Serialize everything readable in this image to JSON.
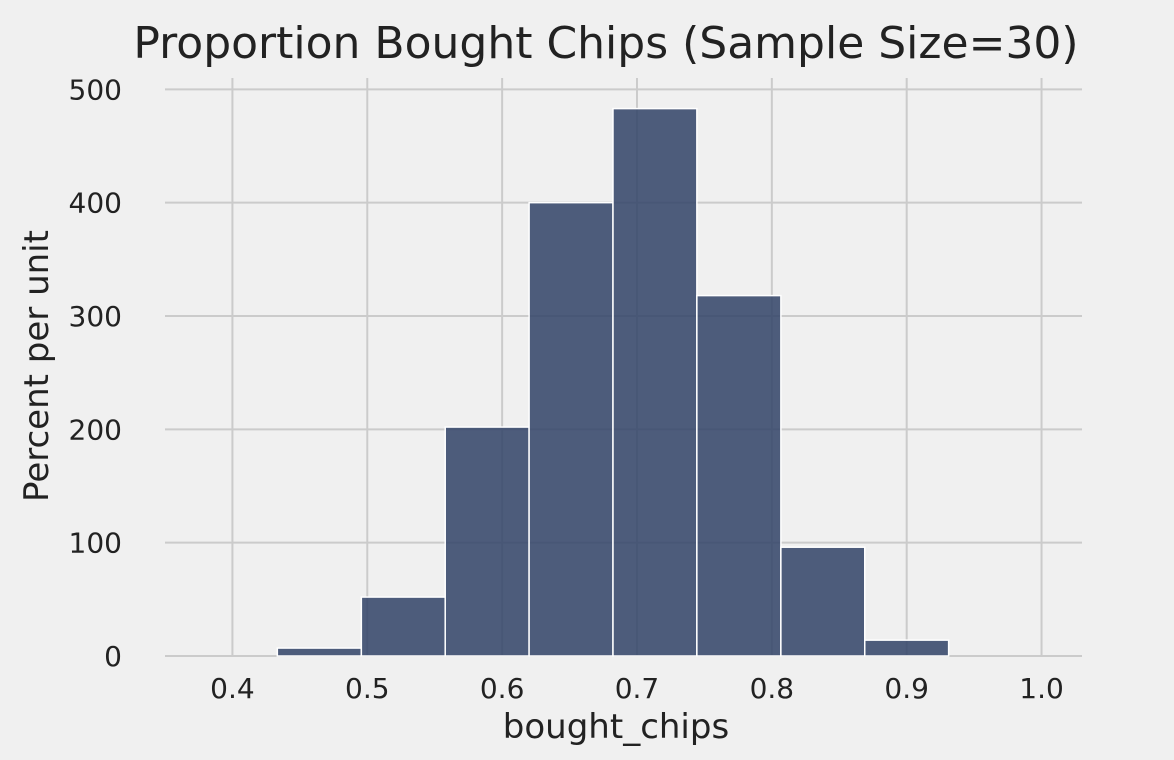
{
  "chart_data": {
    "type": "bar",
    "title": "Proportion Bought Chips (Sample Size=30)",
    "xlabel": "bought_chips",
    "ylabel": "Percent per unit",
    "xlim": [
      0.35,
      1.03
    ],
    "ylim": [
      0,
      510
    ],
    "x_ticks": [
      0.4,
      0.5,
      0.6,
      0.7,
      0.8,
      0.9,
      1.0
    ],
    "x_tick_labels": [
      "0.4",
      "0.5",
      "0.6",
      "0.7",
      "0.8",
      "0.9",
      "1.0"
    ],
    "y_ticks": [
      0,
      100,
      200,
      300,
      400,
      500
    ],
    "y_tick_labels": [
      "0",
      "100",
      "200",
      "300",
      "400",
      "500"
    ],
    "grid": true,
    "bin_edges": [
      0.4333,
      0.4956,
      0.5578,
      0.62,
      0.6822,
      0.7444,
      0.8067,
      0.8689,
      0.9311
    ],
    "values": [
      7,
      52,
      202,
      400,
      483,
      318,
      96,
      14
    ],
    "bar_color": "#35466a",
    "background_color": "#f0f0f0"
  }
}
